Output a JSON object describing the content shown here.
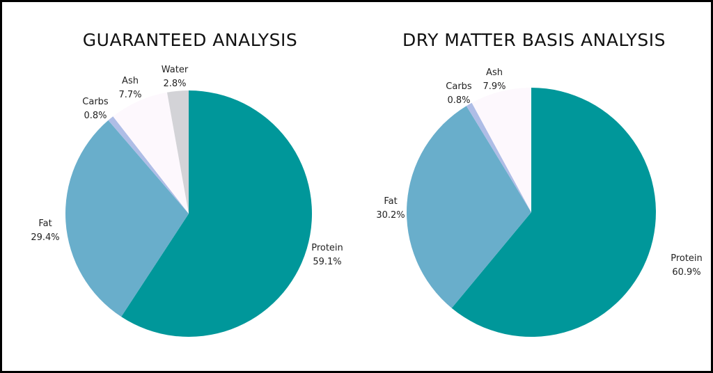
{
  "colors": {
    "Protein": "#00979a",
    "Fat": "#69aecb",
    "Carbs": "#aebde6",
    "Ash": "#fdf8fd",
    "Water": "#d3d3d7",
    "frame": "#000000"
  },
  "chart_data": [
    {
      "type": "pie",
      "title": "GUARANTEED ANALYSIS",
      "slices": [
        {
          "label": "Protein",
          "value": 59.1,
          "display": "59.1%"
        },
        {
          "label": "Fat",
          "value": 29.4,
          "display": "29.4%"
        },
        {
          "label": "Carbs",
          "value": 0.8,
          "display": "0.8%"
        },
        {
          "label": "Ash",
          "value": 7.7,
          "display": "7.7%"
        },
        {
          "label": "Water",
          "value": 2.8,
          "display": "2.8%"
        }
      ]
    },
    {
      "type": "pie",
      "title": "DRY MATTER BASIS ANALYSIS",
      "slices": [
        {
          "label": "Protein",
          "value": 60.9,
          "display": "60.9%"
        },
        {
          "label": "Fat",
          "value": 30.2,
          "display": "30.2%"
        },
        {
          "label": "Carbs",
          "value": 0.8,
          "display": "0.8%"
        },
        {
          "label": "Ash",
          "value": 7.9,
          "display": "7.9%"
        }
      ]
    }
  ]
}
